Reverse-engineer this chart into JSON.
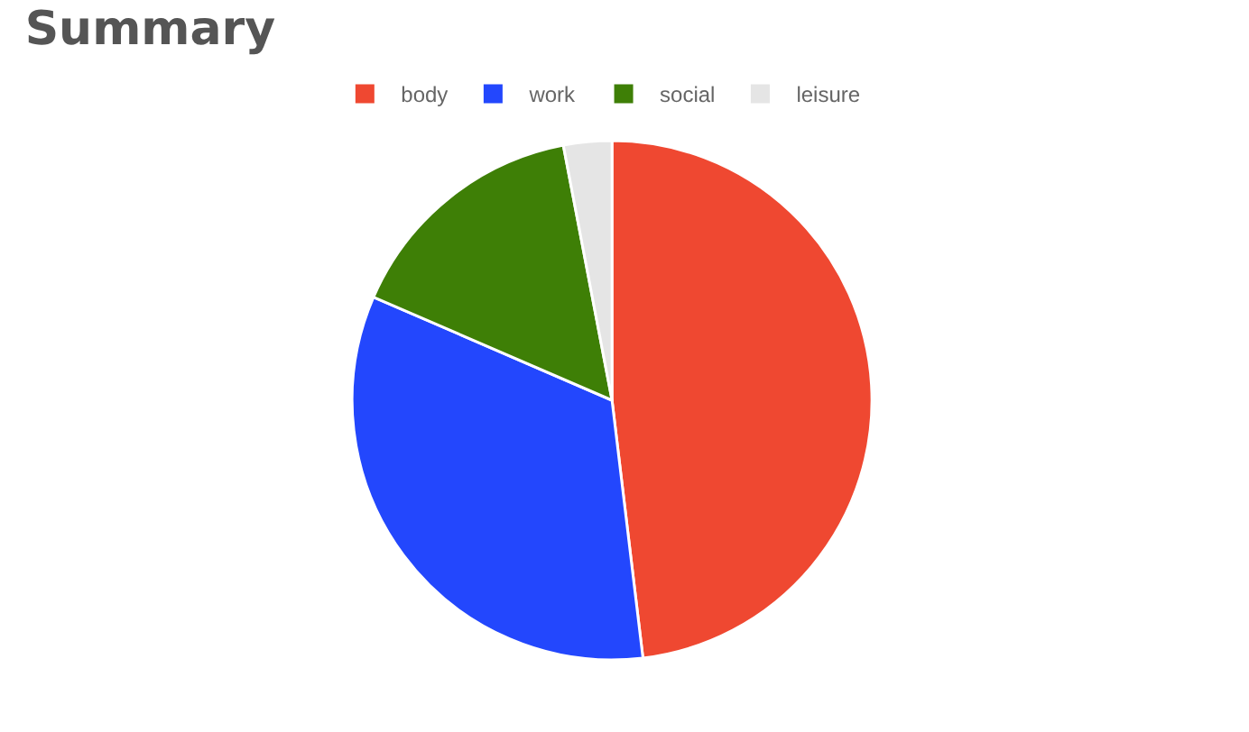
{
  "chart_data": {
    "type": "pie",
    "title": "Summary",
    "categories": [
      "body",
      "work",
      "social",
      "leisure"
    ],
    "values": [
      48.1,
      33.4,
      15.5,
      3.0
    ],
    "colors": [
      "#ef4831",
      "#2347fd",
      "#3e7f06",
      "#e5e5e5"
    ],
    "legend": "top"
  }
}
